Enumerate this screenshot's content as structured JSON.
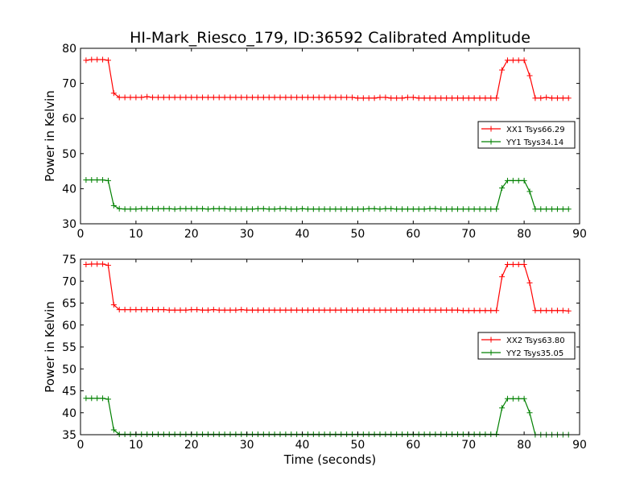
{
  "chart_data": [
    {
      "type": "line",
      "title": "HI-Mark_Riesco_179, ID:36592 Calibrated Amplitude",
      "xlabel": "",
      "ylabel": "Power in Kelvin",
      "xlim": [
        0,
        90
      ],
      "ylim": [
        30,
        80
      ],
      "xticks": [
        0,
        10,
        20,
        30,
        40,
        50,
        60,
        70,
        80,
        90
      ],
      "yticks": [
        30,
        40,
        50,
        60,
        70,
        80
      ],
      "grid": false,
      "legend": "center-right",
      "x": [
        1,
        2,
        3,
        4,
        5,
        6,
        7,
        8,
        9,
        10,
        11,
        12,
        13,
        14,
        15,
        16,
        17,
        18,
        19,
        20,
        21,
        22,
        23,
        24,
        25,
        26,
        27,
        28,
        29,
        30,
        31,
        32,
        33,
        34,
        35,
        36,
        37,
        38,
        39,
        40,
        41,
        42,
        43,
        44,
        45,
        46,
        47,
        48,
        49,
        50,
        51,
        52,
        53,
        54,
        55,
        56,
        57,
        58,
        59,
        60,
        61,
        62,
        63,
        64,
        65,
        66,
        67,
        68,
        69,
        70,
        71,
        72,
        73,
        74,
        75,
        76,
        77,
        78,
        79,
        80,
        81,
        82,
        83,
        84,
        85,
        86,
        87,
        88
      ],
      "series": [
        {
          "name": "XX1 Tsys66.29",
          "color": "#ff0000",
          "values": [
            76.6,
            76.8,
            76.8,
            76.8,
            76.6,
            67.2,
            66.0,
            66.0,
            66.0,
            66.0,
            66.0,
            66.2,
            66.0,
            66.0,
            66.0,
            66.0,
            66.0,
            66.0,
            66.0,
            66.0,
            66.0,
            66.0,
            66.0,
            66.0,
            66.0,
            66.0,
            66.0,
            66.0,
            66.0,
            66.0,
            66.0,
            66.0,
            66.0,
            66.0,
            66.0,
            66.0,
            66.0,
            66.0,
            66.0,
            66.0,
            66.0,
            66.0,
            66.0,
            66.0,
            66.0,
            66.0,
            66.0,
            66.0,
            66.0,
            65.8,
            65.8,
            65.8,
            65.8,
            66.0,
            66.0,
            65.8,
            65.8,
            65.8,
            66.0,
            66.0,
            65.8,
            65.8,
            65.8,
            65.8,
            65.8,
            65.8,
            65.8,
            65.8,
            65.8,
            65.8,
            65.8,
            65.8,
            65.8,
            65.8,
            65.8,
            73.8,
            76.6,
            76.6,
            76.6,
            76.6,
            72.2,
            65.8,
            65.8,
            66.0,
            65.8,
            65.8,
            65.8,
            65.8
          ]
        },
        {
          "name": "YY1 Tsys34.14",
          "color": "#008000",
          "values": [
            42.5,
            42.5,
            42.5,
            42.5,
            42.3,
            35.2,
            34.3,
            34.2,
            34.2,
            34.2,
            34.3,
            34.3,
            34.3,
            34.3,
            34.3,
            34.3,
            34.2,
            34.3,
            34.3,
            34.3,
            34.3,
            34.3,
            34.2,
            34.3,
            34.3,
            34.3,
            34.2,
            34.2,
            34.2,
            34.2,
            34.2,
            34.3,
            34.3,
            34.2,
            34.2,
            34.3,
            34.3,
            34.2,
            34.2,
            34.3,
            34.2,
            34.2,
            34.2,
            34.2,
            34.2,
            34.2,
            34.2,
            34.2,
            34.2,
            34.2,
            34.2,
            34.3,
            34.3,
            34.2,
            34.3,
            34.3,
            34.2,
            34.2,
            34.2,
            34.2,
            34.2,
            34.2,
            34.3,
            34.3,
            34.2,
            34.2,
            34.2,
            34.2,
            34.2,
            34.2,
            34.2,
            34.2,
            34.2,
            34.2,
            34.2,
            40.2,
            42.3,
            42.3,
            42.3,
            42.3,
            39.2,
            34.2,
            34.2,
            34.2,
            34.2,
            34.2,
            34.2,
            34.2
          ]
        }
      ]
    },
    {
      "type": "line",
      "title": "",
      "xlabel": "Time (seconds)",
      "ylabel": "Power in Kelvin",
      "xlim": [
        0,
        90
      ],
      "ylim": [
        35,
        75
      ],
      "xticks": [
        0,
        10,
        20,
        30,
        40,
        50,
        60,
        70,
        80,
        90
      ],
      "yticks": [
        35,
        40,
        45,
        50,
        55,
        60,
        65,
        70,
        75
      ],
      "grid": false,
      "legend": "center-right",
      "x": [
        1,
        2,
        3,
        4,
        5,
        6,
        7,
        8,
        9,
        10,
        11,
        12,
        13,
        14,
        15,
        16,
        17,
        18,
        19,
        20,
        21,
        22,
        23,
        24,
        25,
        26,
        27,
        28,
        29,
        30,
        31,
        32,
        33,
        34,
        35,
        36,
        37,
        38,
        39,
        40,
        41,
        42,
        43,
        44,
        45,
        46,
        47,
        48,
        49,
        50,
        51,
        52,
        53,
        54,
        55,
        56,
        57,
        58,
        59,
        60,
        61,
        62,
        63,
        64,
        65,
        66,
        67,
        68,
        69,
        70,
        71,
        72,
        73,
        74,
        75,
        76,
        77,
        78,
        79,
        80,
        81,
        82,
        83,
        84,
        85,
        86,
        87,
        88
      ],
      "series": [
        {
          "name": "XX2 Tsys63.80",
          "color": "#ff0000",
          "values": [
            73.8,
            73.9,
            73.9,
            73.9,
            73.6,
            64.6,
            63.5,
            63.5,
            63.5,
            63.5,
            63.5,
            63.5,
            63.5,
            63.5,
            63.5,
            63.4,
            63.4,
            63.4,
            63.4,
            63.5,
            63.5,
            63.4,
            63.4,
            63.5,
            63.4,
            63.4,
            63.4,
            63.4,
            63.5,
            63.4,
            63.4,
            63.4,
            63.4,
            63.4,
            63.4,
            63.4,
            63.4,
            63.4,
            63.4,
            63.4,
            63.4,
            63.4,
            63.4,
            63.4,
            63.4,
            63.4,
            63.4,
            63.4,
            63.4,
            63.4,
            63.4,
            63.4,
            63.4,
            63.4,
            63.4,
            63.4,
            63.4,
            63.4,
            63.4,
            63.4,
            63.4,
            63.4,
            63.4,
            63.4,
            63.4,
            63.4,
            63.4,
            63.4,
            63.3,
            63.3,
            63.3,
            63.3,
            63.3,
            63.3,
            63.3,
            71.0,
            73.8,
            73.8,
            73.8,
            73.8,
            69.6,
            63.3,
            63.3,
            63.3,
            63.3,
            63.3,
            63.3,
            63.2
          ]
        },
        {
          "name": "YY2 Tsys35.05",
          "color": "#008000",
          "values": [
            43.3,
            43.3,
            43.3,
            43.3,
            43.1,
            36.1,
            35.1,
            35.1,
            35.1,
            35.1,
            35.1,
            35.1,
            35.1,
            35.1,
            35.1,
            35.1,
            35.1,
            35.1,
            35.1,
            35.1,
            35.1,
            35.1,
            35.1,
            35.1,
            35.1,
            35.1,
            35.1,
            35.1,
            35.1,
            35.1,
            35.1,
            35.1,
            35.1,
            35.1,
            35.1,
            35.1,
            35.1,
            35.1,
            35.1,
            35.1,
            35.1,
            35.1,
            35.1,
            35.1,
            35.1,
            35.1,
            35.1,
            35.1,
            35.1,
            35.1,
            35.1,
            35.1,
            35.1,
            35.1,
            35.1,
            35.1,
            35.1,
            35.1,
            35.1,
            35.1,
            35.1,
            35.1,
            35.1,
            35.1,
            35.1,
            35.1,
            35.1,
            35.1,
            35.1,
            35.1,
            35.1,
            35.1,
            35.1,
            35.1,
            35.1,
            41.1,
            43.2,
            43.2,
            43.2,
            43.2,
            40.0,
            35.0,
            35.0,
            35.0,
            35.0,
            35.0,
            35.0,
            35.0
          ]
        }
      ]
    }
  ]
}
